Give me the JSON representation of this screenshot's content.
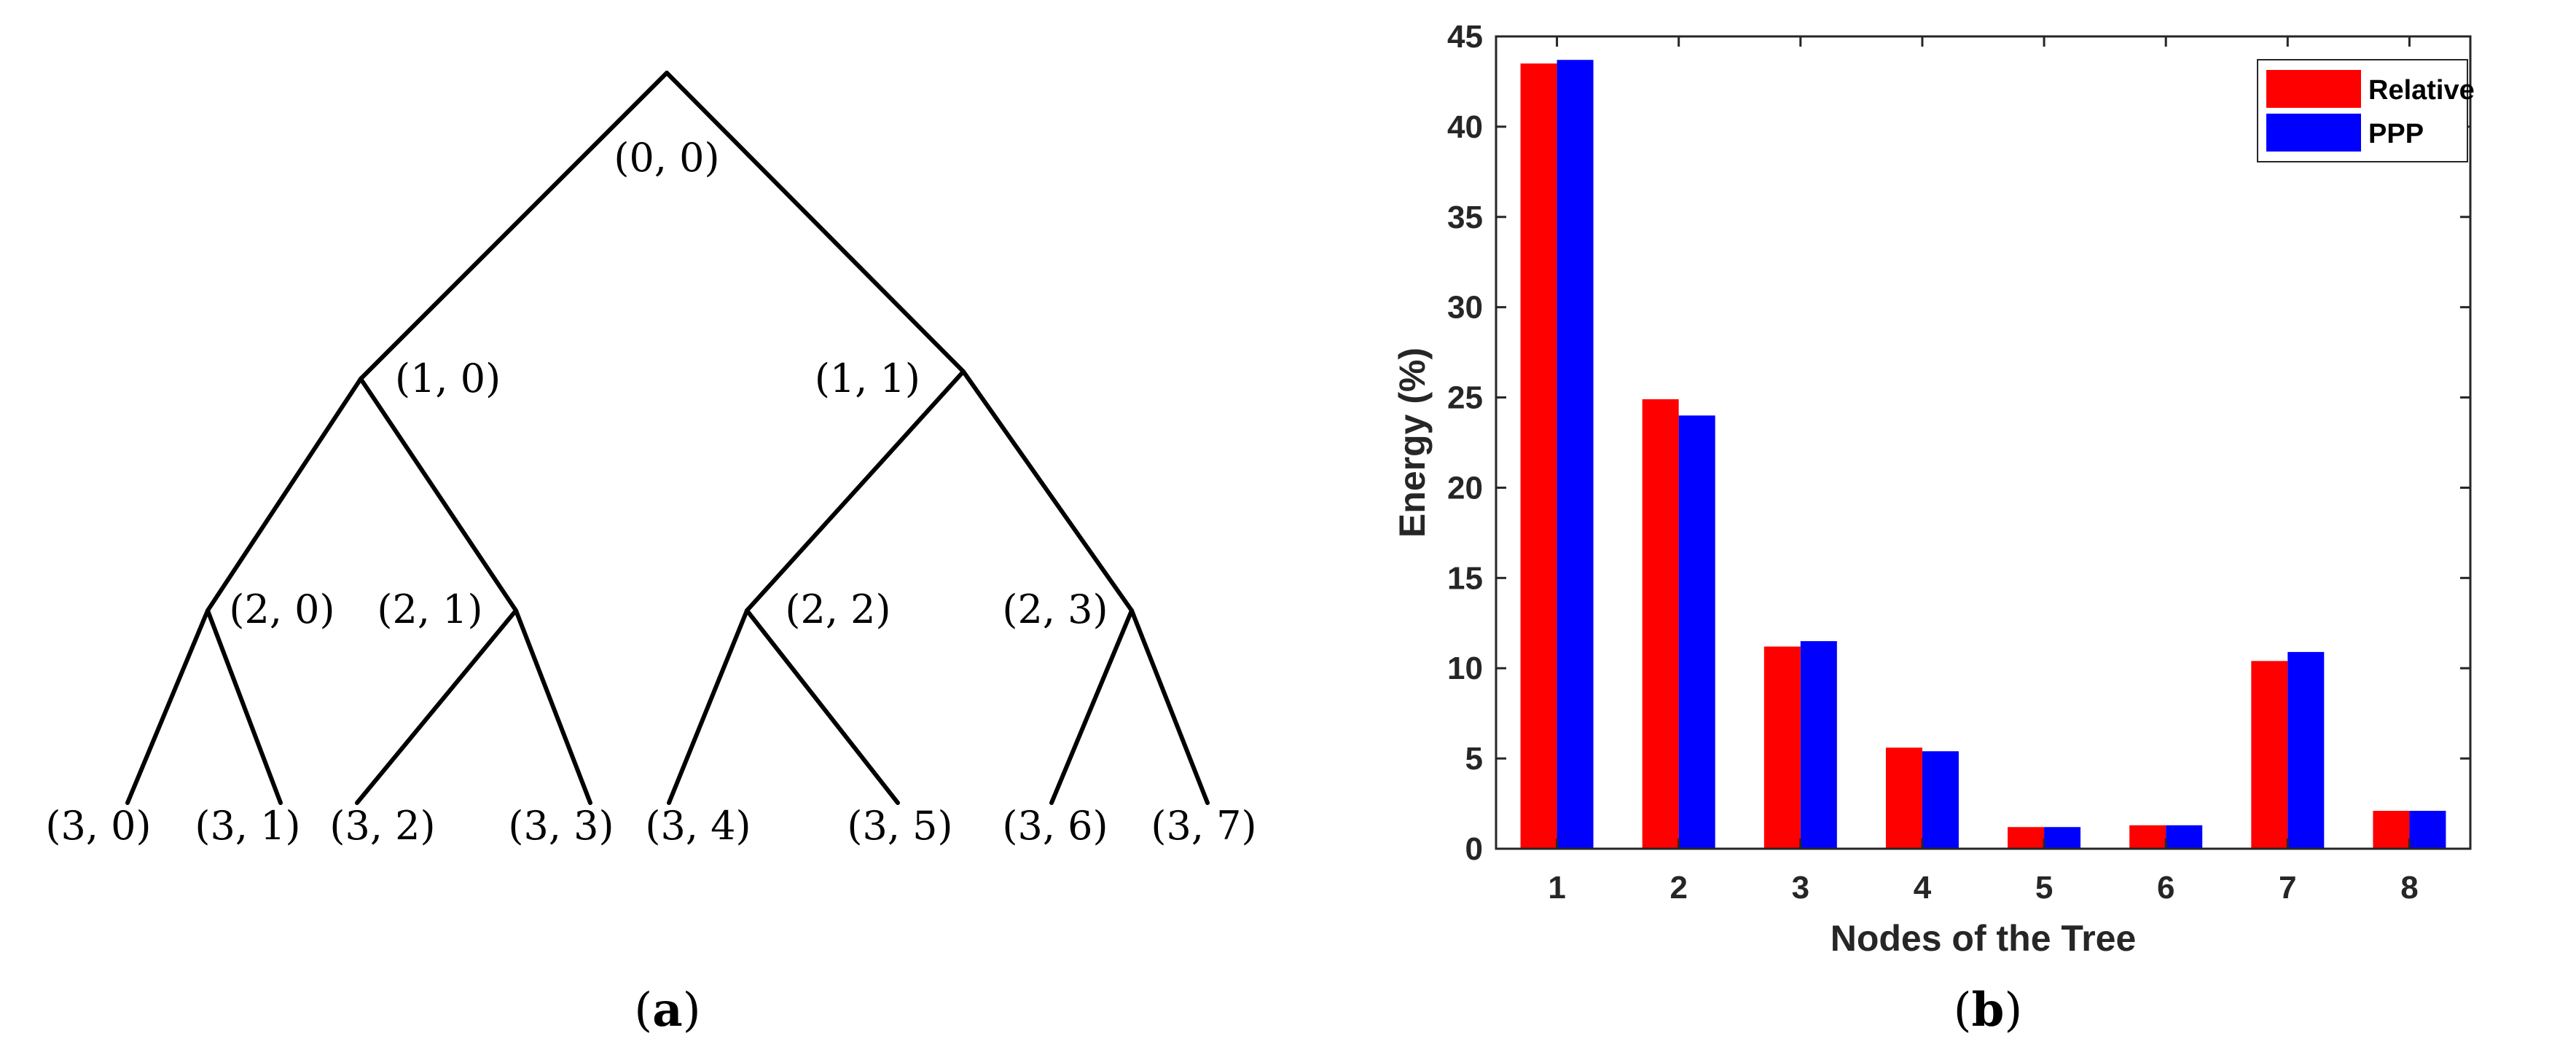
{
  "figure": {
    "caption_a": "a",
    "caption_b": "b"
  },
  "tree": {
    "root": "(0, 0)",
    "level1": [
      "(1, 0)",
      "(1, 1)"
    ],
    "level2": [
      "(2, 0)",
      "(2, 1)",
      "(2, 2)",
      "(2, 3)"
    ],
    "level3": [
      "(3, 0)",
      "(3, 1)",
      "(3, 2)",
      "(3, 3)",
      "(3, 4)",
      "(3, 5)",
      "(3, 6)",
      "(3, 7)"
    ]
  },
  "chart_data": {
    "type": "bar",
    "categories": [
      "1",
      "2",
      "3",
      "4",
      "5",
      "6",
      "7",
      "8"
    ],
    "series": [
      {
        "name": "Relative",
        "color": "#ff0000",
        "values": [
          43.5,
          24.9,
          11.2,
          5.6,
          1.2,
          1.3,
          10.4,
          2.1
        ]
      },
      {
        "name": "PPP",
        "color": "#0000ff",
        "values": [
          43.7,
          24.0,
          11.5,
          5.4,
          1.2,
          1.3,
          10.9,
          2.1
        ]
      }
    ],
    "xlabel": "Nodes of the Tree",
    "ylabel": "Energy (%)",
    "ylim": [
      0,
      45
    ],
    "yticks": [
      "0",
      "5",
      "10",
      "15",
      "20",
      "25",
      "30",
      "35",
      "40",
      "45"
    ],
    "grid": false,
    "legend_position": "top-right"
  }
}
